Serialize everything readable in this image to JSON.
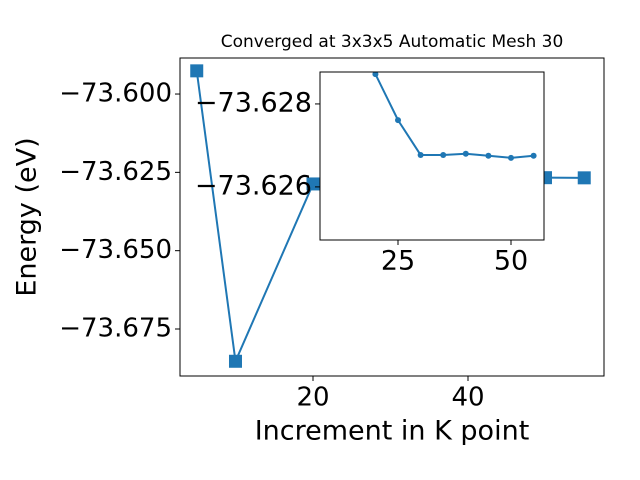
{
  "chart_data": [
    {
      "type": "line",
      "title": "Converged at 3x3x5 Automatic Mesh 30",
      "xlabel": "Increment in K point",
      "ylabel": "Energy (eV)",
      "x": [
        5,
        10,
        20,
        25,
        30,
        35,
        40,
        45,
        50,
        55
      ],
      "series": [
        {
          "color": "#1f77b4",
          "marker": "square",
          "values": [
            -73.5926,
            -73.6853,
            -73.6287,
            -73.62761,
            -73.62677,
            -73.62677,
            -73.6268,
            -73.62675,
            -73.6267,
            -73.62675
          ]
        }
      ],
      "xlim": [
        2.84,
        57.55
      ],
      "ylim": [
        -73.69,
        -73.5885
      ],
      "xticks": [
        20,
        40
      ],
      "yticks": [
        {
          "value": -73.6,
          "label": "−73.600"
        },
        {
          "value": -73.625,
          "label": "−73.625"
        },
        {
          "value": -73.65,
          "label": "−73.650"
        },
        {
          "value": -73.675,
          "label": "−73.675"
        }
      ]
    },
    {
      "type": "line",
      "x": [
        20,
        25,
        30,
        35,
        40,
        45,
        50,
        55
      ],
      "series": [
        {
          "color": "#1f77b4",
          "marker": "circle",
          "values": [
            -73.62872,
            -73.62761,
            -73.62677,
            -73.62677,
            -73.6268,
            -73.62675,
            -73.6267,
            -73.62675
          ]
        }
      ],
      "xlim": [
        7.74,
        57.3
      ],
      "ylim": [
        -73.62472,
        -73.62877
      ],
      "xticks": [
        25,
        50
      ],
      "yticks": [
        {
          "value": -73.628,
          "label": "−73.628"
        },
        {
          "value": -73.626,
          "label": "−73.626"
        }
      ]
    }
  ]
}
